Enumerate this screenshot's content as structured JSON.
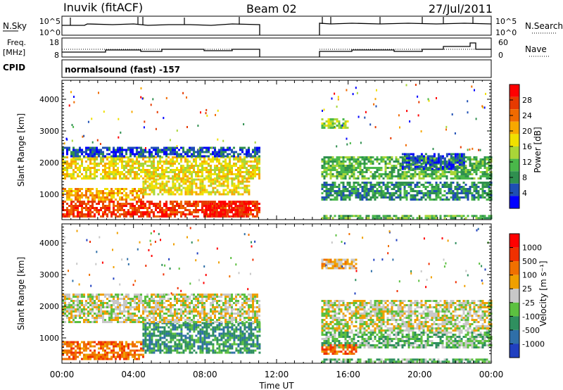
{
  "header": {
    "station": "Inuvik (fitACF)",
    "beam": "Beam 02",
    "date": "27/Jul/2011"
  },
  "panels": {
    "nsky": {
      "label": "N.Sky",
      "tick_labels": [
        "10^5",
        "10^0"
      ],
      "right_label": "N.Search",
      "right_ticks": [
        "10^5",
        "10^0"
      ]
    },
    "freq": {
      "label_line1": "Freq.",
      "label_line2": "[MHz]",
      "tick_labels": [
        "18",
        "8"
      ],
      "right_label": "Nave",
      "right_ticks": [
        "60",
        "0"
      ]
    },
    "cpid": {
      "label": "CPID",
      "mode": "normalsound (fast) -157"
    }
  },
  "power_panel": {
    "ylabel": "Slant Range [km]",
    "yticks": [
      "4000",
      "3000",
      "2000",
      "1000"
    ],
    "colorbar_label": "Power [dB]",
    "colorbar_ticks": [
      "28",
      "24",
      "20",
      "16",
      "12",
      "8",
      "4"
    ],
    "colors": [
      "#0000ff",
      "#1f4fb4",
      "#2f8f4f",
      "#4ab84a",
      "#a9d638",
      "#f0e000",
      "#f7a800",
      "#f06a00",
      "#e63a00",
      "#ff0000"
    ]
  },
  "velocity_panel": {
    "ylabel": "Slant Range [km]",
    "yticks": [
      "4000",
      "3000",
      "2000",
      "1000"
    ],
    "colorbar_label": "Velocity [m s⁻¹]",
    "colorbar_ticks": [
      "1000",
      "500",
      "100",
      "25",
      "-25",
      "-100",
      "-500",
      "-1000"
    ],
    "colors": [
      "#2040c0",
      "#2f6fa8",
      "#2f8f5f",
      "#5cc040",
      "#c8c8c8",
      "#f0a000",
      "#f07000",
      "#f03000",
      "#ff0000"
    ]
  },
  "time_axis": {
    "label": "Time UT",
    "ticks": [
      "00:00",
      "04:00",
      "08:00",
      "12:00",
      "16:00",
      "20:00",
      "00:00"
    ]
  },
  "chart_data": {
    "type": "heatmap",
    "x_unit": "hours UT",
    "xlim": [
      0,
      24
    ],
    "ylim": [
      200,
      4600
    ],
    "data_gap": [
      11.0,
      14.5
    ],
    "power_bands": [
      {
        "t0": 0.0,
        "t1": 11.0,
        "r0": 300,
        "r1": 800,
        "level": 8
      },
      {
        "t0": 0.0,
        "t1": 4.5,
        "r0": 800,
        "r1": 1200,
        "level": 6
      },
      {
        "t0": 4.5,
        "t1": 10.5,
        "r0": 1000,
        "r1": 1500,
        "level": 5
      },
      {
        "t0": 0.0,
        "t1": 11.0,
        "r0": 1500,
        "r1": 2200,
        "level": 5
      },
      {
        "t0": 0.0,
        "t1": 11.0,
        "r0": 2200,
        "r1": 2500,
        "level": 1
      },
      {
        "t0": 8.0,
        "t1": 10.5,
        "r0": 300,
        "r1": 800,
        "level": 9
      },
      {
        "t0": 14.5,
        "t1": 24.0,
        "r0": 1500,
        "r1": 2200,
        "level": 3
      },
      {
        "t0": 14.5,
        "t1": 24.0,
        "r0": 800,
        "r1": 1400,
        "level": 2
      },
      {
        "t0": 19.0,
        "t1": 22.5,
        "r0": 1800,
        "r1": 2300,
        "level": 1
      },
      {
        "t0": 14.5,
        "t1": 16.0,
        "r0": 3100,
        "r1": 3400,
        "level": 4
      },
      {
        "t0": 14.5,
        "t1": 24.0,
        "r0": 220,
        "r1": 350,
        "level": 3
      }
    ],
    "velocity_bands": [
      {
        "t0": 0.0,
        "t1": 4.5,
        "r0": 300,
        "r1": 900,
        "level": 6
      },
      {
        "t0": 4.5,
        "t1": 11.0,
        "r0": 500,
        "r1": 1500,
        "level": 2
      },
      {
        "t0": 0.0,
        "t1": 11.0,
        "r0": 1500,
        "r1": 2400,
        "level": 4
      },
      {
        "t0": 14.5,
        "t1": 24.0,
        "r0": 1200,
        "r1": 2200,
        "level": 4
      },
      {
        "t0": 14.5,
        "t1": 24.0,
        "r0": 700,
        "r1": 1200,
        "level": 3
      },
      {
        "t0": 14.5,
        "t1": 16.5,
        "r0": 500,
        "r1": 800,
        "level": 6
      },
      {
        "t0": 14.5,
        "t1": 16.5,
        "r0": 3200,
        "r1": 3500,
        "level": 5
      },
      {
        "t0": 14.5,
        "t1": 24.0,
        "r0": 220,
        "r1": 350,
        "level": 3
      }
    ]
  }
}
